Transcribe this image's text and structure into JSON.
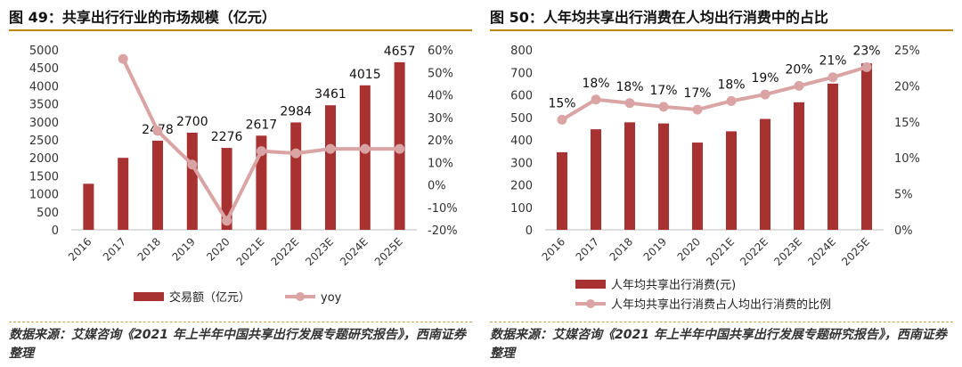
{
  "charts": [
    {
      "figure_title": "图 49：共享出行行业的市场规模（亿元）",
      "source": "数据来源：艾媒咨询《2021 年上半年中国共享出行发展专题研究报告》，西南证券整理",
      "chart_data": {
        "type": "bar",
        "categories": [
          "2016",
          "2017",
          "2018",
          "2019",
          "2020",
          "2021E",
          "2022E",
          "2023E",
          "2024E",
          "2025E"
        ],
        "series": [
          {
            "name": "交易额（亿元）",
            "type": "bar",
            "axis": "left",
            "values": [
              1280,
              2000,
              2478,
              2700,
              2276,
              2617,
              2984,
              3461,
              4015,
              4657
            ],
            "data_labels": [
              "",
              "",
              "2478",
              "2700",
              "2276",
              "2617",
              "2984",
              "3461",
              "4015",
              "4657"
            ]
          },
          {
            "name": "yoy",
            "type": "line",
            "axis": "right",
            "values": [
              null,
              56,
              24,
              9,
              -16,
              15,
              14,
              16,
              16,
              16
            ]
          }
        ],
        "y_left": {
          "min": 0,
          "max": 5000,
          "step": 500,
          "ticks": [
            "0",
            "500",
            "1000",
            "1500",
            "2000",
            "2500",
            "3000",
            "3500",
            "4000",
            "4500",
            "5000"
          ]
        },
        "y_right": {
          "min": -20,
          "max": 60,
          "step": 10,
          "ticks": [
            "-20%",
            "-10%",
            "0%",
            "10%",
            "20%",
            "30%",
            "40%",
            "50%",
            "60%"
          ]
        },
        "grid": false,
        "legend_position": "bottom",
        "colors": {
          "bar": "#a83232",
          "line": "#dba4a4",
          "marker": "#dba4a4"
        }
      }
    },
    {
      "figure_title": "图 50：人年均共享出行消费在人均出行消费中的占比",
      "source": "数据来源：艾媒咨询《2021 年上半年中国共享出行发展专题研究报告》，西南证券整理",
      "chart_data": {
        "type": "bar",
        "categories": [
          "2016",
          "2017",
          "2018",
          "2019",
          "2020",
          "2021E",
          "2022E",
          "2023E",
          "2024E",
          "2025E"
        ],
        "series": [
          {
            "name": "人年均共享出行消费(元)",
            "type": "bar",
            "axis": "left",
            "values": [
              345,
              447,
              478,
              473,
              388,
              438,
              493,
              567,
              650,
              740
            ]
          },
          {
            "name": "人年均共享出行消费占人均出行消费的比例",
            "type": "line",
            "axis": "right",
            "values": [
              15.3,
              18.1,
              17.6,
              17.1,
              16.7,
              17.9,
              18.8,
              20.0,
              21.2,
              22.6
            ],
            "data_labels": [
              "15%",
              "18%",
              "18%",
              "17%",
              "17%",
              "18%",
              "19%",
              "20%",
              "21%",
              "23%"
            ]
          }
        ],
        "y_left": {
          "min": 0,
          "max": 800,
          "step": 100,
          "ticks": [
            "0",
            "100",
            "200",
            "300",
            "400",
            "500",
            "600",
            "700",
            "800"
          ]
        },
        "y_right": {
          "min": 0,
          "max": 25,
          "step": 5,
          "ticks": [
            "0%",
            "5%",
            "10%",
            "15%",
            "20%",
            "25%"
          ]
        },
        "grid": false,
        "legend_position": "bottom",
        "colors": {
          "bar": "#a83232",
          "line": "#dba4a4",
          "marker": "#dba4a4"
        }
      }
    }
  ]
}
